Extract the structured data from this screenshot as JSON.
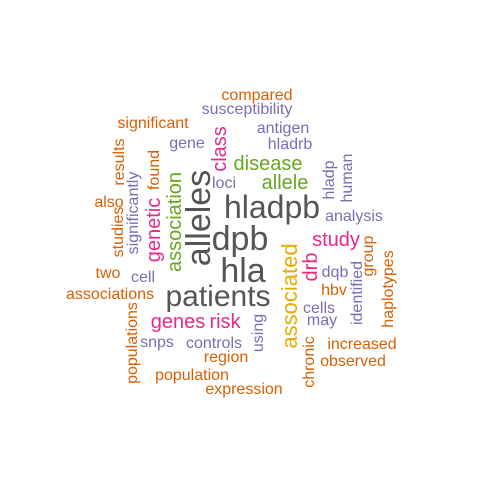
{
  "colors": {
    "gray": "#555555",
    "orange": "#d95f02",
    "purple": "#7570b3",
    "magenta": "#e7298a",
    "green": "#66a61e",
    "gold": "#e6ab02"
  },
  "words": [
    {
      "text": "compared",
      "color": "#d95f02",
      "vertical": false
    },
    {
      "text": "susceptibility",
      "color": "#7570b3",
      "vertical": false
    },
    {
      "text": "significant",
      "color": "#d95f02",
      "vertical": false
    },
    {
      "text": "antigen",
      "color": "#7570b3",
      "vertical": false
    },
    {
      "text": "gene",
      "color": "#7570b3",
      "vertical": false
    },
    {
      "text": "hladrb",
      "color": "#7570b3",
      "vertical": false
    },
    {
      "text": "class",
      "color": "#e7298a",
      "vertical": true
    },
    {
      "text": "results",
      "color": "#d95f02",
      "vertical": true
    },
    {
      "text": "found",
      "color": "#d95f02",
      "vertical": true
    },
    {
      "text": "disease",
      "color": "#66a61e",
      "vertical": false
    },
    {
      "text": "human",
      "color": "#7570b3",
      "vertical": true
    },
    {
      "text": "allele",
      "color": "#66a61e",
      "vertical": false
    },
    {
      "text": "significantly",
      "color": "#7570b3",
      "vertical": true
    },
    {
      "text": "loci",
      "color": "#7570b3",
      "vertical": false
    },
    {
      "text": "hladp",
      "color": "#7570b3",
      "vertical": true
    },
    {
      "text": "alleles",
      "color": "#555555",
      "vertical": true
    },
    {
      "text": "hladpb",
      "color": "#555555",
      "vertical": false
    },
    {
      "text": "also",
      "color": "#d95f02",
      "vertical": false
    },
    {
      "text": "association",
      "color": "#66a61e",
      "vertical": true
    },
    {
      "text": "analysis",
      "color": "#7570b3",
      "vertical": false
    },
    {
      "text": "studies",
      "color": "#d95f02",
      "vertical": true
    },
    {
      "text": "genetic",
      "color": "#e7298a",
      "vertical": true
    },
    {
      "text": "dpb",
      "color": "#555555",
      "vertical": false
    },
    {
      "text": "study",
      "color": "#e7298a",
      "vertical": false
    },
    {
      "text": "associated",
      "color": "#e6ab02",
      "vertical": true
    },
    {
      "text": "group",
      "color": "#d95f02",
      "vertical": true
    },
    {
      "text": "hla",
      "color": "#555555",
      "vertical": false
    },
    {
      "text": "drb",
      "color": "#e7298a",
      "vertical": true
    },
    {
      "text": "dqb",
      "color": "#7570b3",
      "vertical": false
    },
    {
      "text": "two",
      "color": "#d95f02",
      "vertical": false
    },
    {
      "text": "cell",
      "color": "#7570b3",
      "vertical": false
    },
    {
      "text": "haplotypes",
      "color": "#d95f02",
      "vertical": true
    },
    {
      "text": "identified",
      "color": "#7570b3",
      "vertical": true
    },
    {
      "text": "hbv",
      "color": "#d95f02",
      "vertical": false
    },
    {
      "text": "associations",
      "color": "#d95f02",
      "vertical": false
    },
    {
      "text": "patients",
      "color": "#555555",
      "vertical": false
    },
    {
      "text": "cells",
      "color": "#7570b3",
      "vertical": false
    },
    {
      "text": "may",
      "color": "#7570b3",
      "vertical": false
    },
    {
      "text": "genes",
      "color": "#e7298a",
      "vertical": false
    },
    {
      "text": "risk",
      "color": "#e7298a",
      "vertical": false
    },
    {
      "text": "using",
      "color": "#7570b3",
      "vertical": true
    },
    {
      "text": "populations",
      "color": "#d95f02",
      "vertical": true
    },
    {
      "text": "snps",
      "color": "#7570b3",
      "vertical": false
    },
    {
      "text": "controls",
      "color": "#7570b3",
      "vertical": false
    },
    {
      "text": "increased",
      "color": "#d95f02",
      "vertical": false
    },
    {
      "text": "region",
      "color": "#d95f02",
      "vertical": false
    },
    {
      "text": "chronic",
      "color": "#d95f02",
      "vertical": true
    },
    {
      "text": "observed",
      "color": "#d95f02",
      "vertical": false
    },
    {
      "text": "population",
      "color": "#d95f02",
      "vertical": false
    },
    {
      "text": "expression",
      "color": "#d95f02",
      "vertical": false
    }
  ]
}
